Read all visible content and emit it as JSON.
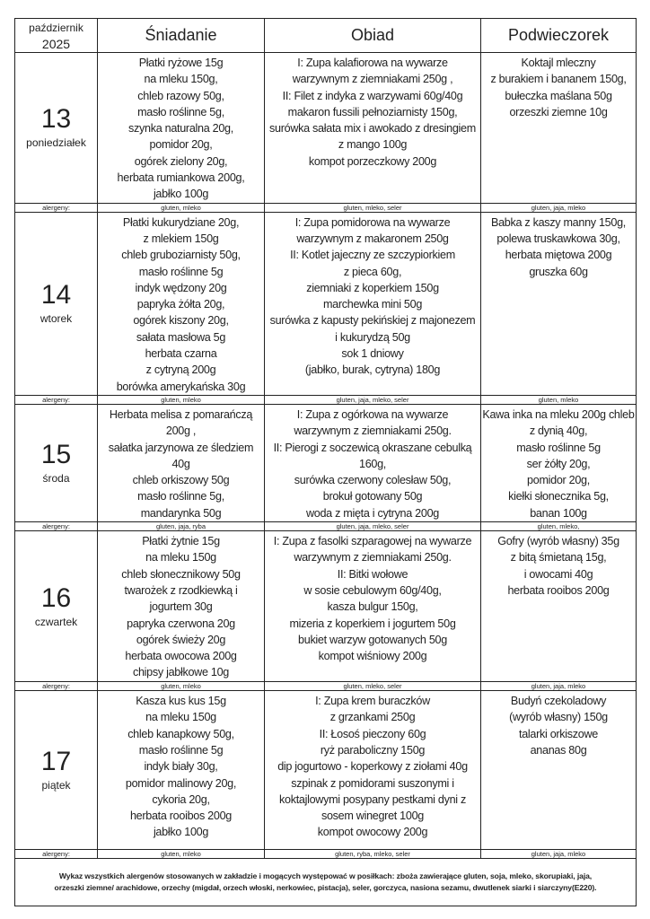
{
  "header": {
    "month": "październik",
    "year": "2025",
    "breakfast": "Śniadanie",
    "lunch": "Obiad",
    "snack": "Podwieczorek"
  },
  "allergen_label": "alergeny:",
  "days": [
    {
      "date": "13",
      "weekday": "poniedziałek",
      "breakfast": [
        "Płatki ryżowe 15g",
        "na mleku 150g,",
        "chleb razowy 50g,",
        "masło roślinne 5g,",
        "szynka naturalna 20g,",
        "pomidor 20g,",
        "ogórek zielony 20g,",
        "herbata rumiankowa 200g,",
        "jabłko 100g"
      ],
      "lunch": [
        "I: Zupa kalafiorowa  na wywarze",
        "warzywnym z ziemniakami 250g ,",
        "II: Filet z indyka z warzywami 60g/40g",
        "makaron fussili pełnoziarnisty 150g,",
        "surówka sałata mix i awokado z dresingiem",
        "z mango 100g",
        "kompot porzeczkowy 200g"
      ],
      "snack": [
        "Koktajl mleczny",
        "z burakiem i bananem 150g,",
        "bułeczka maślana 50g",
        "orzeszki ziemne 10g"
      ],
      "allergens": {
        "breakfast": "gluten, mleko",
        "lunch": "gluten, mleko, seler",
        "snack": "gluten, jaja, mleko"
      }
    },
    {
      "date": "14",
      "weekday": "wtorek",
      "breakfast": [
        "Płatki kukurydziane 20g,",
        "z mlekiem 150g",
        "chleb gruboziarnisty 50g,",
        "masło roślinne 5g",
        "indyk wędzony 20g",
        "papryka żółta 20g,",
        "ogórek kiszony 20g,",
        "sałata masłowa 5g",
        "herbata czarna",
        "z cytryną  200g",
        "borówka amerykańska 30g"
      ],
      "lunch": [
        "I: Zupa pomidorowa na wywarze",
        "warzywnym z makaronem 250g",
        "II: Kotlet jajeczny ze szczypiorkiem",
        "z pieca 60g,",
        "ziemniaki z koperkiem 150g",
        "marchewka mini 50g",
        "surówka z kapusty pekińskiej z majonezem",
        "i kukurydzą 50g",
        "sok 1 dniowy",
        "(jabłko, burak, cytryna) 180g"
      ],
      "snack": [
        "Babka z kaszy manny 150g,",
        "polewa truskawkowa 30g,",
        "herbata miętowa 200g",
        "gruszka 60g"
      ],
      "allergens": {
        "breakfast": "gluten, mleko",
        "lunch": "gluten, jaja, mleko,  seler",
        "snack": "gluten, mleko"
      }
    },
    {
      "date": "15",
      "weekday": "środa",
      "breakfast": [
        "Herbata melisa z pomarańczą",
        "200g ,",
        "sałatka jarzynowa ze śledziem",
        "40g",
        "chleb orkiszowy 50g",
        "masło roślinne 5g,",
        "mandarynka 50g"
      ],
      "lunch": [
        "I: Zupa z ogórkowa na wywarze",
        "warzywnym z ziemniakami  250g.",
        "II: Pierogi z soczewicą okraszane cebulką",
        "160g,",
        "surówka czerwony colesław 50g,",
        "brokuł gotowany 50g",
        "woda z mięta i cytryna 200g"
      ],
      "snack": [
        "Kawa inka na mleku 200g chleb",
        "z dynią 40g,",
        "masło roślinne 5g",
        "ser żółty 20g,",
        "pomidor 20g,",
        "kiełki słonecznika 5g,",
        "banan 100g"
      ],
      "allergens": {
        "breakfast": "gluten, jaja, ryba",
        "lunch": "gluten, jaja, mleko, seler",
        "snack": "gluten, mleko,"
      }
    },
    {
      "date": "16",
      "weekday": "czwartek",
      "breakfast": [
        "Płatki żytnie 15g",
        "na mleku 150g",
        "chleb słonecznikowy 50g",
        "twarożek z rzodkiewką i",
        "jogurtem 30g",
        "papryka czerwona  20g",
        "ogórek  świeży 20g",
        "herbata owocowa 200g",
        "chipsy jabłkowe 10g"
      ],
      "lunch": [
        "I: Zupa z fasolki szparagowej na wywarze",
        "warzywnym z ziemniakami  250g.",
        "II: Bitki wołowe",
        "w sosie cebulowym  60g/40g,",
        "kasza bulgur 150g,",
        "mizeria z koperkiem i jogurtem 50g",
        "bukiet warzyw gotowanych 50g",
        "kompot wiśniowy 200g"
      ],
      "snack": [
        "Gofry (wyrób własny) 35g",
        "z bitą śmietaną 15g,",
        "i owocami 40g",
        "herbata rooibos 200g"
      ],
      "allergens": {
        "breakfast": "gluten, mleko",
        "lunch": "gluten, mleko, seler",
        "snack": "gluten, jaja, mleko"
      }
    },
    {
      "date": "17",
      "weekday": "piątek",
      "breakfast": [
        "Kasza kus kus  15g",
        "na mleku 150g",
        "chleb kanapkowy 50g,",
        "masło roślinne 5g",
        "indyk biały 30g,",
        "pomidor malinowy 20g,",
        "cykoria 20g,",
        "herbata rooibos 200g",
        "jabłko 100g"
      ],
      "lunch": [
        "I: Zupa krem buraczków",
        "z grzankami 250g",
        "II: Łosoś pieczony 60g",
        "ryż paraboliczny 150g",
        "dip jogurtowo - koperkowy z ziołami 40g",
        "szpinak z pomidorami suszonymi i",
        "koktajlowymi posypany pestkami dyni z",
        "sosem winegret 100g",
        "kompot owocowy 200g"
      ],
      "snack": [
        "Budyń czekoladowy",
        "(wyrób własny) 150g",
        "talarki orkiszowe",
        "ananas 80g"
      ],
      "allergens": {
        "breakfast": "gluten, mleko",
        "lunch": "gluten, ryba, mleko, seler",
        "snack": "gluten, jaja, mleko"
      }
    }
  ],
  "footer": {
    "line1": "Wykaz wszystkich alergenów stosowanych w zakładzie i mogących występować w posiłkach: zboża zawierające gluten, soja, mleko, skorupiaki, jaja,",
    "line2": "orzeszki ziemne/ arachidowe, orzechy (migdał, orzech włoski, nerkowiec, pistacja), seler, gorczyca, nasiona sezamu, dwutlenek siarki i siarczyny(E220)."
  }
}
